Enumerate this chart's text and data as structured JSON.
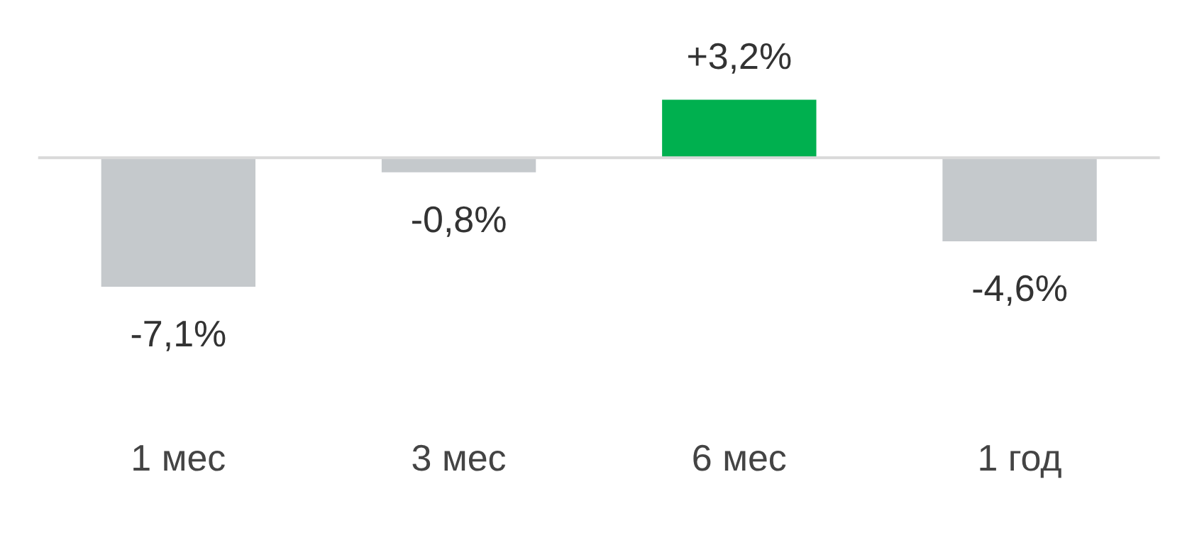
{
  "chart_data": {
    "type": "bar",
    "categories": [
      "1 мес",
      "3 мес",
      "6 мес",
      "1 год"
    ],
    "values": [
      -7.1,
      -0.8,
      3.2,
      -4.6
    ],
    "colors": [
      "#c5c9cc",
      "#c5c9cc",
      "#00b04f",
      "#c5c9cc"
    ],
    "value_labels": [
      "-7,1%",
      "-0,8%",
      "+3,2%",
      "-4,6%"
    ],
    "ref_lines": [
      {
        "axis": "y",
        "value": 0,
        "color": "#d9d9d9"
      }
    ],
    "grid": false,
    "legend": false
  }
}
